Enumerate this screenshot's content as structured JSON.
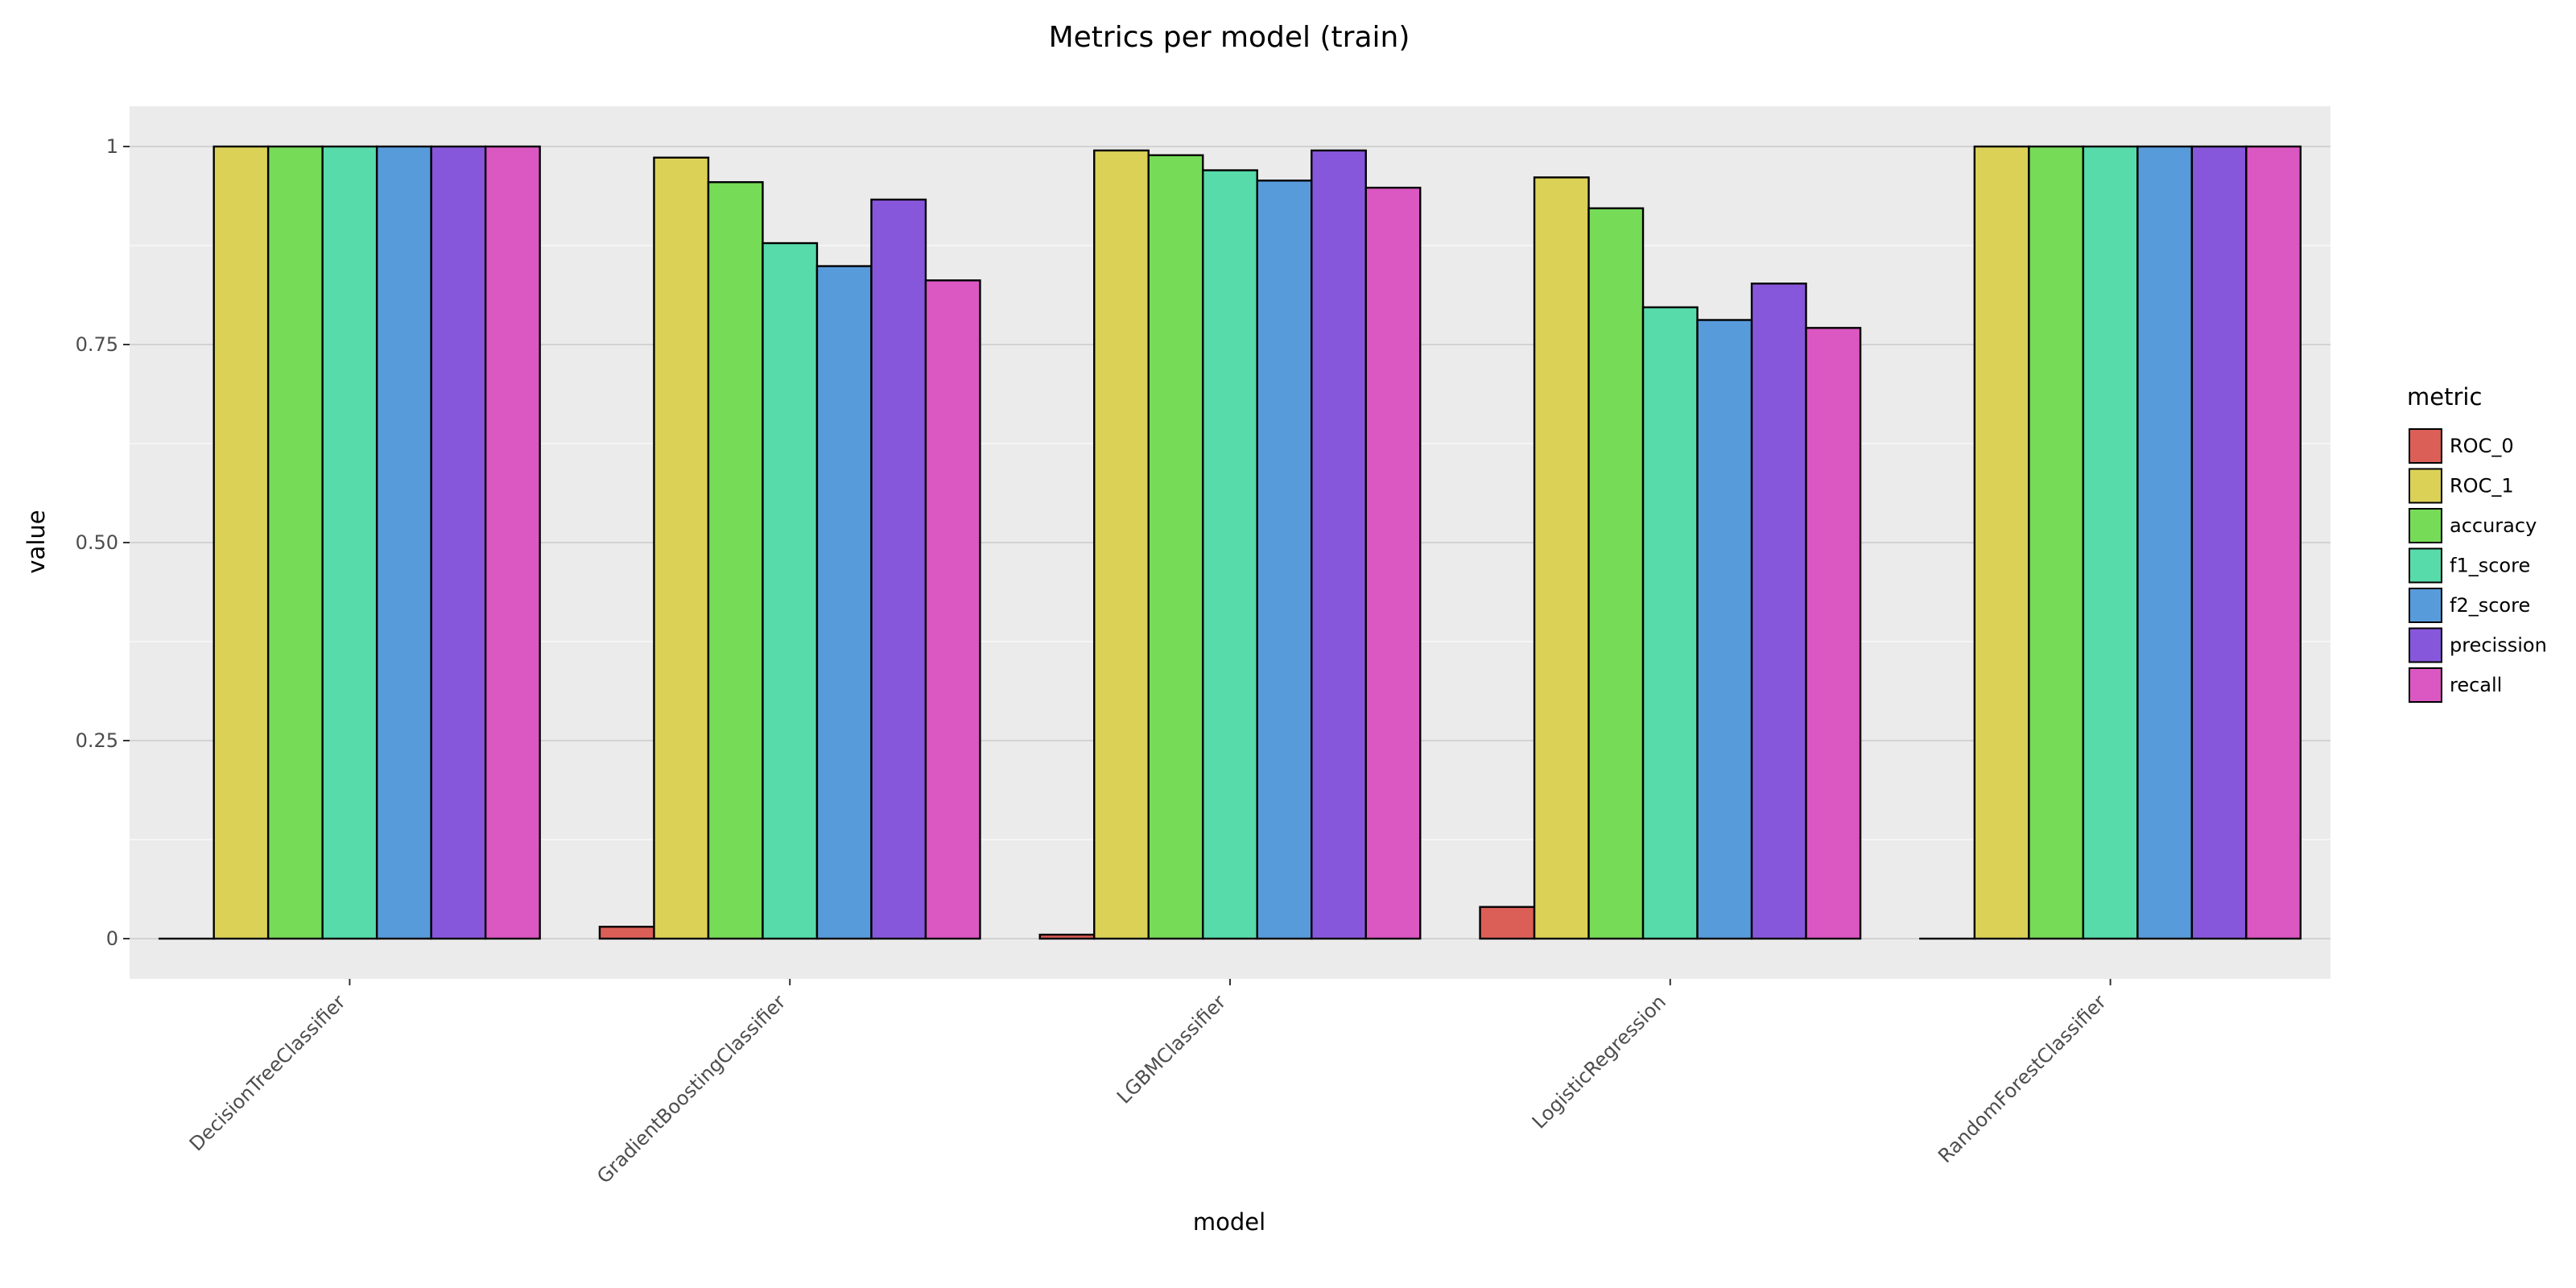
{
  "chart_data": {
    "type": "bar",
    "title": "Metrics per model (train)",
    "xlabel": "model",
    "ylabel": "value",
    "ylim": [
      -0.05,
      1.05
    ],
    "yticks": [
      0,
      0.25,
      0.5,
      0.75,
      1
    ],
    "ytick_labels": [
      "0",
      "0.25",
      "0.50",
      "0.75",
      "1"
    ],
    "grid": true,
    "legend": {
      "title": "metric",
      "position": "right"
    },
    "categories": [
      "DecisionTreeClassifier",
      "GradientBoostingClassifier",
      "LGBMClassifier",
      "LogisticRegression",
      "RandomForestClassifier"
    ],
    "series": [
      {
        "name": "ROC_0",
        "color": "#db5f57",
        "values": [
          0.0,
          0.015,
          0.005,
          0.04,
          0.0
        ]
      },
      {
        "name": "ROC_1",
        "color": "#dbd157",
        "values": [
          1.0,
          0.986,
          0.995,
          0.961,
          1.0
        ]
      },
      {
        "name": "accuracy",
        "color": "#76db57",
        "values": [
          1.0,
          0.955,
          0.989,
          0.922,
          1.0
        ]
      },
      {
        "name": "f1_score",
        "color": "#57dbab",
        "values": [
          1.0,
          0.878,
          0.97,
          0.797,
          1.0
        ]
      },
      {
        "name": "f2_score",
        "color": "#579bdb",
        "values": [
          1.0,
          0.849,
          0.957,
          0.781,
          1.0
        ]
      },
      {
        "name": "precission",
        "color": "#8757db",
        "values": [
          1.0,
          0.933,
          0.995,
          0.827,
          1.0
        ]
      },
      {
        "name": "recall",
        "color": "#db57c2",
        "values": [
          1.0,
          0.831,
          0.948,
          0.771,
          1.0
        ]
      }
    ]
  }
}
